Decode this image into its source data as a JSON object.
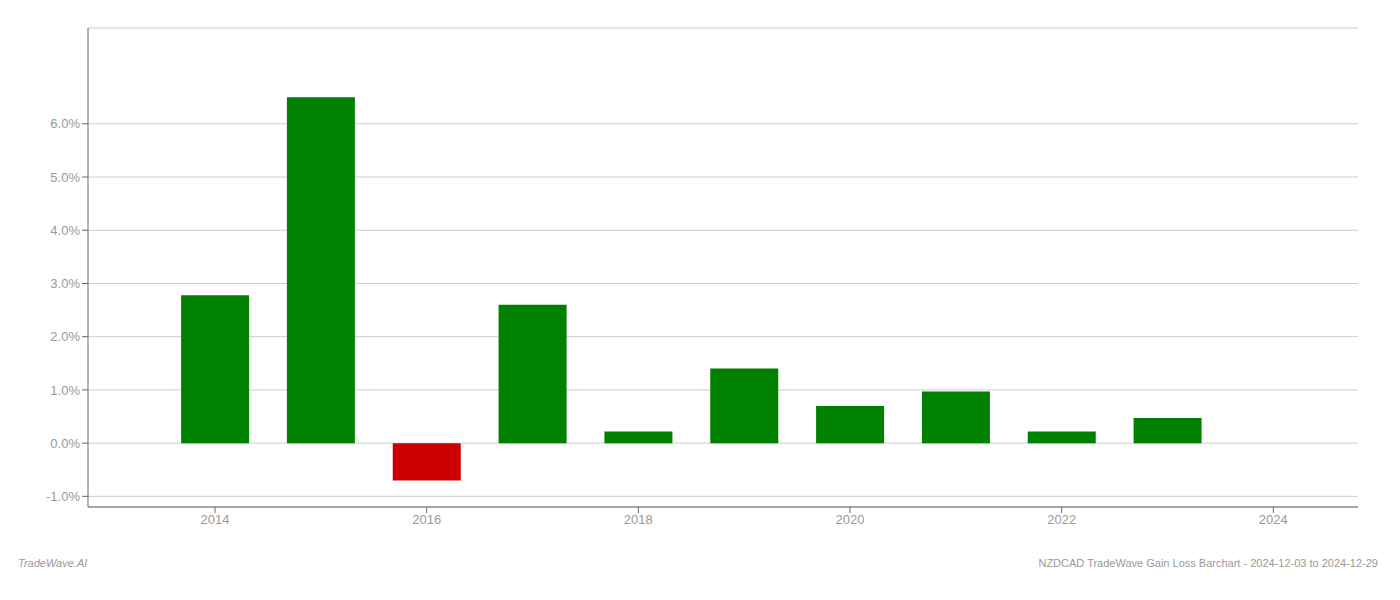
{
  "chart_data": {
    "type": "bar",
    "x": [
      2014,
      2015,
      2016,
      2017,
      2018,
      2019,
      2020,
      2021,
      2022,
      2023
    ],
    "values": [
      0.0278,
      0.065,
      -0.007,
      0.026,
      0.0022,
      0.014,
      0.007,
      0.0097,
      0.0022,
      0.0047
    ],
    "colors": [
      "#008000",
      "#008000",
      "#cc0000",
      "#008000",
      "#008000",
      "#008000",
      "#008000",
      "#008000",
      "#008000",
      "#008000"
    ],
    "xlim": [
      2012.8,
      2024.8
    ],
    "ylim": [
      -0.012,
      0.078
    ],
    "xticks": [
      2014,
      2016,
      2018,
      2020,
      2022,
      2024
    ],
    "yticks": [
      {
        "value": -0.01,
        "label": "-1.0%"
      },
      {
        "value": 0.0,
        "label": "0.0%"
      },
      {
        "value": 0.01,
        "label": "1.0%"
      },
      {
        "value": 0.02,
        "label": "2.0%"
      },
      {
        "value": 0.03,
        "label": "3.0%"
      },
      {
        "value": 0.04,
        "label": "4.0%"
      },
      {
        "value": 0.05,
        "label": "5.0%"
      },
      {
        "value": 0.06,
        "label": "6.0%"
      }
    ],
    "grid": true,
    "annotations": [
      "TradeWave.AI",
      "NZDCAD TradeWave Gain Loss Barchart - 2024-12-03 to 2024-12-29"
    ]
  }
}
